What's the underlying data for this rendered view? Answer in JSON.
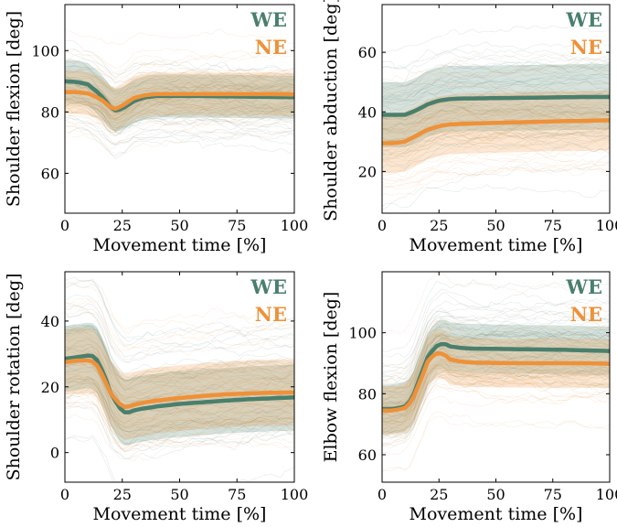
{
  "colors": {
    "WE": "#4a7f6d",
    "NE": "#ee9138"
  },
  "chart_data": [
    {
      "type": "line",
      "xlabel": "Movement time [%]",
      "ylabel": "Shoulder flexion [deg]",
      "xlim": [
        0,
        100
      ],
      "ylim": [
        47,
        115
      ],
      "xticks": [
        0,
        25,
        50,
        75,
        100
      ],
      "yticks": [
        60,
        80,
        100
      ],
      "legend": [
        "WE",
        "NE"
      ],
      "legend_placement": "top-right",
      "series": [
        {
          "name": "WE",
          "x": [
            0,
            5,
            10,
            15,
            20,
            22,
            25,
            30,
            35,
            40,
            50,
            60,
            70,
            80,
            90,
            100
          ],
          "values": [
            90,
            89.8,
            89,
            86,
            81.5,
            80.5,
            81,
            83.5,
            84.8,
            85.2,
            85.2,
            85.2,
            85.1,
            85,
            84.9,
            84.8
          ],
          "sd": 7
        },
        {
          "name": "NE",
          "x": [
            0,
            5,
            10,
            15,
            20,
            22,
            25,
            30,
            35,
            40,
            50,
            60,
            70,
            80,
            90,
            100
          ],
          "values": [
            86.5,
            86.5,
            86,
            84.5,
            81.5,
            81,
            82,
            84.5,
            85.5,
            85.8,
            85.8,
            85.8,
            85.8,
            85.8,
            85.8,
            85.7
          ],
          "sd": 7
        }
      ]
    },
    {
      "type": "line",
      "xlabel": "Movement time [%]",
      "ylabel": "Shoulder abduction [deg]",
      "xlim": [
        0,
        100
      ],
      "ylim": [
        6,
        76
      ],
      "xticks": [
        0,
        25,
        50,
        75,
        100
      ],
      "yticks": [
        20,
        40,
        60
      ],
      "legend": [
        "WE",
        "NE"
      ],
      "legend_placement": "top-right",
      "series": [
        {
          "name": "WE",
          "x": [
            0,
            5,
            10,
            15,
            20,
            25,
            30,
            35,
            40,
            50,
            60,
            70,
            80,
            90,
            100
          ],
          "values": [
            39,
            39,
            39,
            40.5,
            42.5,
            43.8,
            44.3,
            44.5,
            44.5,
            44.6,
            44.7,
            44.8,
            44.9,
            45,
            45
          ],
          "sd": 11
        },
        {
          "name": "NE",
          "x": [
            0,
            5,
            10,
            15,
            20,
            25,
            30,
            35,
            40,
            50,
            60,
            70,
            80,
            90,
            100
          ],
          "values": [
            29.5,
            29.5,
            30,
            32,
            34,
            35.2,
            35.8,
            36,
            36.1,
            36.3,
            36.5,
            36.7,
            36.9,
            37,
            37.2
          ],
          "sd": 10
        }
      ]
    },
    {
      "type": "line",
      "xlabel": "Movement time [%]",
      "ylabel": "Shoulder rotation [deg]",
      "xlim": [
        0,
        100
      ],
      "ylim": [
        -9,
        55
      ],
      "xticks": [
        0,
        25,
        50,
        75,
        100
      ],
      "yticks": [
        0,
        20,
        40
      ],
      "legend": [
        "WE",
        "NE"
      ],
      "legend_placement": "top-right",
      "series": [
        {
          "name": "WE",
          "x": [
            0,
            5,
            10,
            13,
            15,
            18,
            20,
            23,
            25,
            27,
            30,
            35,
            40,
            50,
            60,
            70,
            80,
            90,
            100
          ],
          "values": [
            28.5,
            29,
            29.5,
            29.3,
            27,
            22,
            18,
            14.5,
            12.5,
            12,
            12.8,
            13.5,
            14,
            14.8,
            15.3,
            15.8,
            16.2,
            16.5,
            16.8
          ],
          "sd": 10
        },
        {
          "name": "NE",
          "x": [
            0,
            5,
            10,
            13,
            15,
            18,
            20,
            23,
            25,
            27,
            30,
            35,
            40,
            50,
            60,
            70,
            80,
            90,
            100
          ],
          "values": [
            27.5,
            28,
            28,
            27.5,
            25.5,
            21,
            18,
            15.5,
            14,
            13.8,
            14.5,
            15.3,
            15.8,
            16.6,
            17.2,
            17.7,
            18,
            18.2,
            18.3
          ],
          "sd": 10
        }
      ]
    },
    {
      "type": "line",
      "xlabel": "Movement time [%]",
      "ylabel": "Elbow flexion [deg]",
      "xlim": [
        0,
        100
      ],
      "ylim": [
        51,
        120
      ],
      "xticks": [
        0,
        25,
        50,
        75,
        100
      ],
      "yticks": [
        60,
        80,
        100
      ],
      "legend": [
        "WE",
        "NE"
      ],
      "legend_placement": "top-right",
      "series": [
        {
          "name": "WE",
          "x": [
            0,
            5,
            10,
            13,
            15,
            18,
            20,
            23,
            25,
            28,
            30,
            35,
            40,
            50,
            60,
            70,
            80,
            90,
            100
          ],
          "values": [
            75,
            75,
            75.8,
            78,
            82,
            88,
            92,
            95,
            96.3,
            96.2,
            95.5,
            95,
            94.8,
            94.7,
            94.6,
            94.5,
            94.4,
            94.2,
            94
          ],
          "sd": 8
        },
        {
          "name": "NE",
          "x": [
            0,
            5,
            10,
            13,
            15,
            18,
            20,
            23,
            25,
            28,
            30,
            35,
            40,
            50,
            60,
            70,
            80,
            90,
            100
          ],
          "values": [
            74.5,
            74.5,
            75.3,
            77.5,
            81,
            86.5,
            90.5,
            93,
            93.5,
            92.5,
            91.2,
            90.5,
            90.2,
            90.1,
            90,
            90,
            90,
            90,
            89.8
          ],
          "sd": 8
        }
      ]
    }
  ]
}
